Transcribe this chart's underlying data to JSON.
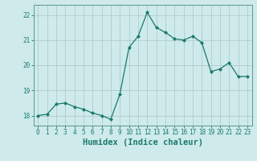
{
  "x": [
    0,
    1,
    2,
    3,
    4,
    5,
    6,
    7,
    8,
    9,
    10,
    11,
    12,
    13,
    14,
    15,
    16,
    17,
    18,
    19,
    20,
    21,
    22,
    23
  ],
  "y": [
    18.0,
    18.05,
    18.45,
    18.5,
    18.35,
    18.25,
    18.1,
    18.0,
    17.85,
    18.85,
    20.7,
    21.15,
    22.1,
    21.5,
    21.3,
    21.05,
    21.0,
    21.15,
    20.9,
    19.75,
    19.85,
    20.1,
    19.55,
    19.55
  ],
  "line_color": "#1a7a6e",
  "marker": "D",
  "markersize": 2.0,
  "linewidth": 0.9,
  "bg_color": "#ceeaea",
  "grid_color": "#b0cccc",
  "xlabel": "Humidex (Indice chaleur)",
  "ylim": [
    17.6,
    22.4
  ],
  "xlim": [
    -0.5,
    23.5
  ],
  "yticks": [
    18,
    19,
    20,
    21,
    22
  ],
  "xticks": [
    0,
    1,
    2,
    3,
    4,
    5,
    6,
    7,
    8,
    9,
    10,
    11,
    12,
    13,
    14,
    15,
    16,
    17,
    18,
    19,
    20,
    21,
    22,
    23
  ],
  "tick_color": "#1a7a6e",
  "tick_fontsize": 5.5,
  "xlabel_fontsize": 7.5,
  "spine_color": "#5a9a8a"
}
